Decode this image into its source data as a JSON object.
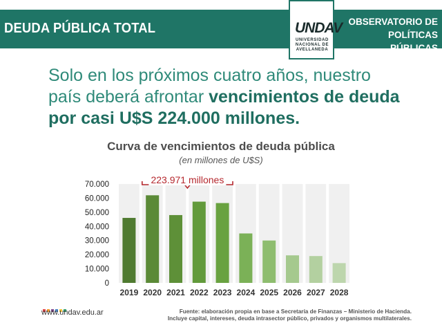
{
  "header": {
    "title": "DEUDA PÚBLICA TOTAL",
    "org_line1": "OBSERVATORIO DE",
    "org_line2": "POLÍTICAS PÚBLICAS",
    "logo_mark": "UNDAV",
    "logo_line1": "UNIVERSIDAD",
    "logo_line2": "NACIONAL DE",
    "logo_line3": "AVELLANEDA",
    "color": "#1f7566"
  },
  "headline": {
    "lead": "Solo en los próximos cuatro años, nuestro país deberá afrontar ",
    "emphasis": "vencimientos de deuda por casi U$S 224.000 millones."
  },
  "chart_data": {
    "type": "bar",
    "title": "Curva de vencimientos de deuda pública",
    "subtitle": "(en millones de U$S)",
    "categories": [
      "2019",
      "2020",
      "2021",
      "2022",
      "2023",
      "2024",
      "2025",
      "2026",
      "2027",
      "2028"
    ],
    "values": [
      46000,
      62000,
      48000,
      57500,
      56500,
      35000,
      30000,
      19500,
      19000,
      14000
    ],
    "ylim": [
      0,
      70000
    ],
    "yticks": [
      0,
      10000,
      20000,
      30000,
      40000,
      50000,
      60000,
      70000
    ],
    "ytick_labels": [
      "0",
      "10.000",
      "20.000",
      "30.000",
      "40.000",
      "50.000",
      "60.000",
      "70.000"
    ],
    "grid": "vertical bands",
    "colors": [
      "#4f7a31",
      "#5b8a37",
      "#5e9038",
      "#629a3b",
      "#69a240",
      "#7bb157",
      "#8ebd6f",
      "#a5c98e",
      "#b3d0a0",
      "#bdd6ad"
    ],
    "annotation": {
      "text": "223.971 millones",
      "span": [
        "2020",
        "2023"
      ],
      "color": "#b5282e"
    }
  },
  "footer": {
    "url": "www.undav.edu.ar",
    "source_line1": "Fuente: elaboración propia en base a Secretaría de Finanzas – Ministerio de Hacienda.",
    "source_line2": "Incluye capital, intereses, deuda intrasector público, privados y organismos multilaterales.",
    "square_colors": [
      "#e2474a",
      "#f29a2e",
      "#7f4a8e",
      "#4b86c5",
      "#f2c53d",
      "#39a174"
    ]
  }
}
